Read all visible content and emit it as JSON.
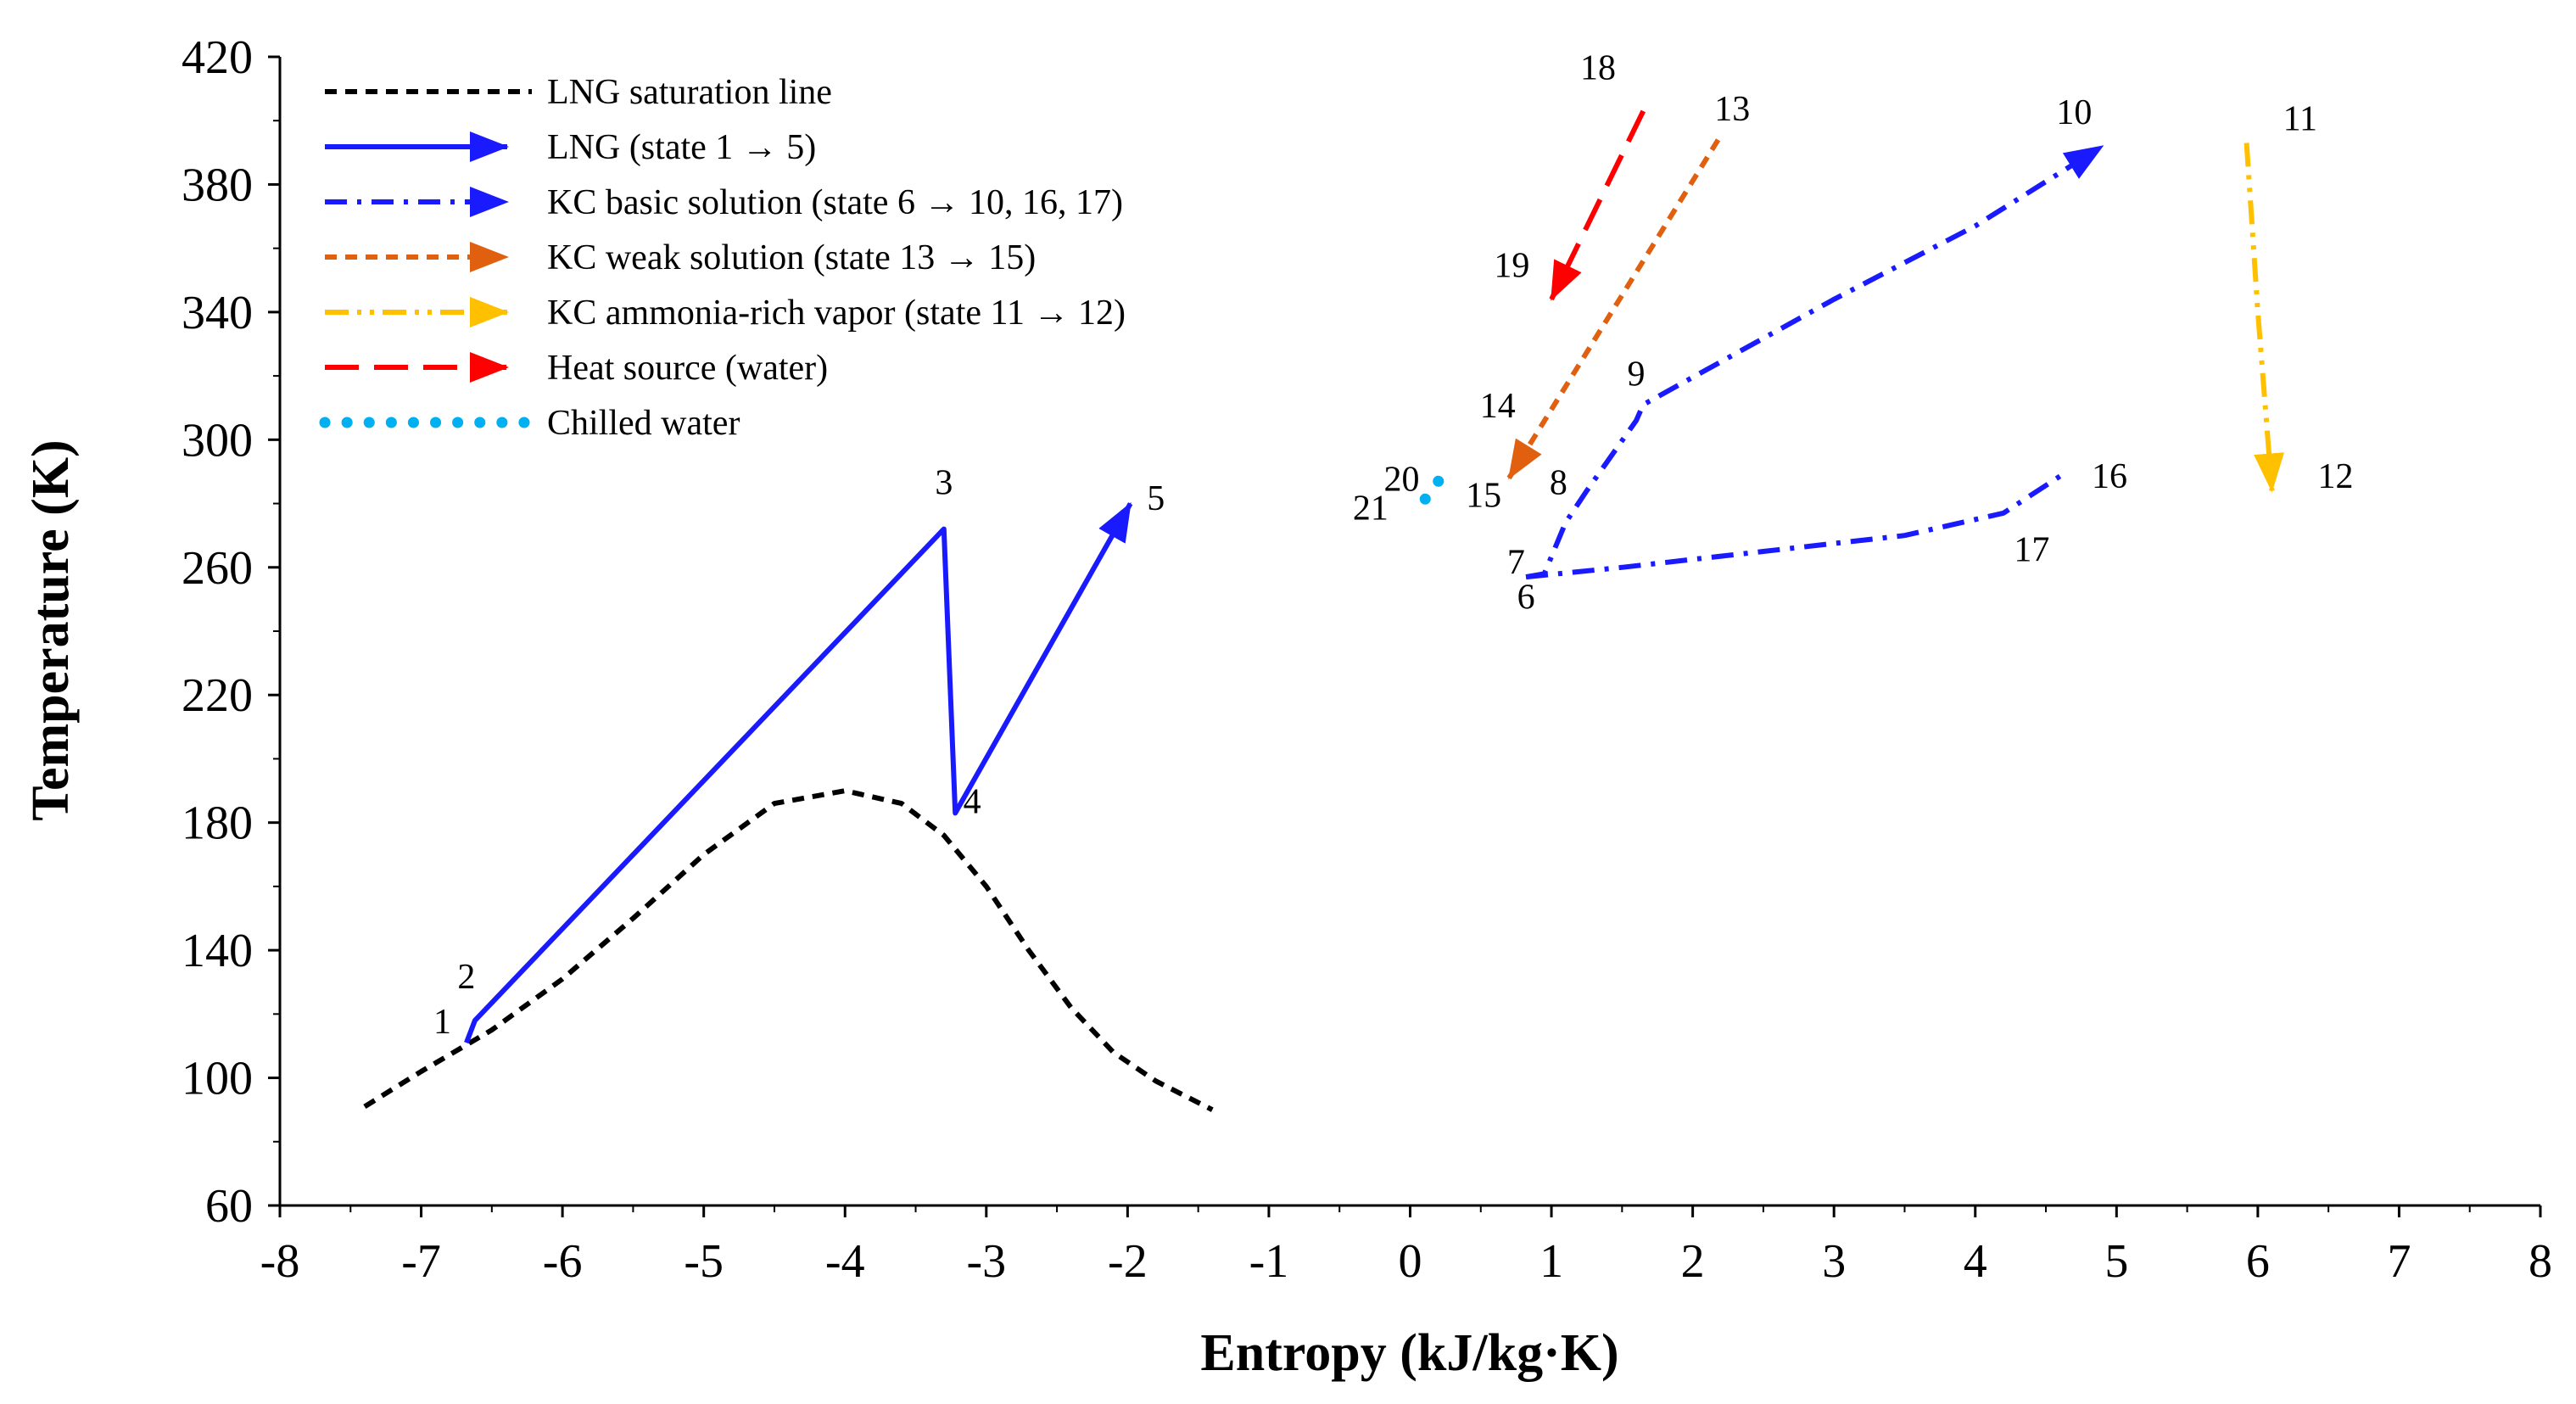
{
  "chart_data": {
    "type": "line",
    "xlabel": "Entropy (kJ/kg·K)",
    "ylabel": "Temperature (K)",
    "xlim": [
      -8,
      8
    ],
    "ylim": [
      60,
      420
    ],
    "x_ticks": [
      -8,
      -7,
      -6,
      -5,
      -4,
      -3,
      -2,
      -1,
      0,
      1,
      2,
      3,
      4,
      5,
      6,
      7,
      8
    ],
    "y_ticks": [
      60,
      100,
      140,
      180,
      220,
      260,
      300,
      340,
      380,
      420
    ],
    "legend_position": "top-left",
    "series": [
      {
        "name": "LNG saturation line",
        "color": "#000000",
        "style": "short-dash",
        "arrow": false,
        "points": [
          [
            -7.4,
            91
          ],
          [
            -7.0,
            102
          ],
          [
            -6.5,
            115
          ],
          [
            -6.0,
            131
          ],
          [
            -5.5,
            150
          ],
          [
            -5.0,
            170
          ],
          [
            -4.5,
            186
          ],
          [
            -4.0,
            190
          ],
          [
            -3.6,
            186
          ],
          [
            -3.3,
            176
          ],
          [
            -3.0,
            160
          ],
          [
            -2.7,
            140
          ],
          [
            -2.4,
            122
          ],
          [
            -2.1,
            108
          ],
          [
            -1.8,
            99
          ],
          [
            -1.4,
            90
          ]
        ]
      },
      {
        "name": "LNG (state 1 → 5)",
        "color": "#1a1aff",
        "style": "solid",
        "arrow": true,
        "points": [
          [
            -6.68,
            111
          ],
          [
            -6.62,
            118
          ],
          [
            -3.3,
            272
          ],
          [
            -3.22,
            183
          ],
          [
            -1.98,
            280
          ]
        ]
      },
      {
        "name": "KC basic solution (state 6 → 10, 16, 17)",
        "color": "#1a1aff",
        "style": "dash-dot",
        "arrow": true,
        "points": [
          [
            0.82,
            257
          ],
          [
            0.95,
            258
          ],
          [
            1.1,
            274
          ],
          [
            1.25,
            284
          ],
          [
            1.6,
            306
          ],
          [
            1.65,
            311
          ],
          [
            3.0,
            344
          ],
          [
            4.0,
            367
          ],
          [
            4.9,
            392
          ]
        ]
      },
      {
        "name": "",
        "color": "#1a1aff",
        "style": "dash-dot",
        "arrow": false,
        "points": [
          [
            0.82,
            257
          ],
          [
            1.5,
            260
          ],
          [
            2.5,
            265
          ],
          [
            3.5,
            270
          ],
          [
            4.2,
            277
          ],
          [
            4.65,
            290
          ]
        ]
      },
      {
        "name": "KC weak solution (state 13 → 15)",
        "color": "#e06010",
        "style": "short-dash",
        "arrow": true,
        "points": [
          [
            2.18,
            394
          ],
          [
            0.7,
            288
          ]
        ]
      },
      {
        "name": "KC ammonia-rich vapor (state 11 → 12)",
        "color": "#ffc000",
        "style": "dash-dot-dot",
        "arrow": true,
        "points": [
          [
            5.92,
            393
          ],
          [
            6.0,
            340
          ],
          [
            6.1,
            284
          ]
        ]
      },
      {
        "name": "Heat source (water)",
        "color": "#ff0000",
        "style": "long-dash",
        "arrow": true,
        "points": [
          [
            1.65,
            403
          ],
          [
            1.0,
            344
          ]
        ]
      },
      {
        "name": "Chilled water",
        "color": "#00b0f0",
        "style": "dots",
        "arrow": false,
        "points": [
          [
            0.2,
            287
          ],
          [
            0.05,
            278
          ]
        ]
      }
    ],
    "point_labels": [
      {
        "text": "1",
        "x": -6.85,
        "y": 114
      },
      {
        "text": "2",
        "x": -6.68,
        "y": 128
      },
      {
        "text": "3",
        "x": -3.3,
        "y": 283
      },
      {
        "text": "4",
        "x": -3.1,
        "y": 183
      },
      {
        "text": "5",
        "x": -1.8,
        "y": 278
      },
      {
        "text": "6",
        "x": 0.82,
        "y": 247
      },
      {
        "text": "7",
        "x": 0.75,
        "y": 258
      },
      {
        "text": "8",
        "x": 1.05,
        "y": 283
      },
      {
        "text": "9",
        "x": 1.6,
        "y": 317
      },
      {
        "text": "10",
        "x": 4.7,
        "y": 399
      },
      {
        "text": "11",
        "x": 6.3,
        "y": 397
      },
      {
        "text": "12",
        "x": 6.55,
        "y": 285
      },
      {
        "text": "13",
        "x": 2.28,
        "y": 400
      },
      {
        "text": "14",
        "x": 0.62,
        "y": 307
      },
      {
        "text": "15",
        "x": 0.52,
        "y": 279
      },
      {
        "text": "16",
        "x": 4.95,
        "y": 285
      },
      {
        "text": "17",
        "x": 4.4,
        "y": 262
      },
      {
        "text": "18",
        "x": 1.33,
        "y": 413
      },
      {
        "text": "19",
        "x": 0.72,
        "y": 351
      },
      {
        "text": "20",
        "x": -0.06,
        "y": 284
      },
      {
        "text": "21",
        "x": -0.28,
        "y": 275
      }
    ]
  }
}
